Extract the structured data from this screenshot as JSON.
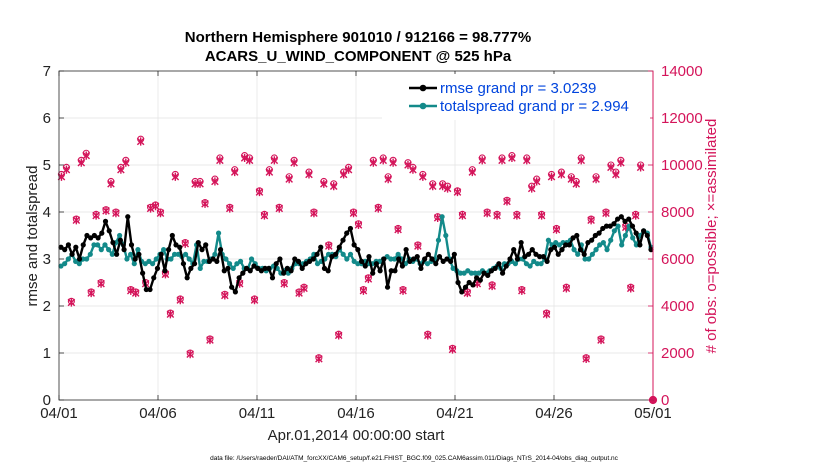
{
  "chart_data": {
    "type": "line",
    "title_line1": "Northern Hemisphere 901010 / 912166 = 98.777%",
    "title_line2": "ACARS_U_WIND_COMPONENT @ 525 hPa",
    "xlabel": "Apr.01,2014 00:00:00 start",
    "ylabel": "rmse and totalspread",
    "ylabel_right": "# of obs: o=possible; ×=assimilated",
    "footnote": "data file: /Users/raeder/DAI/ATM_forcXX/CAM6_setup/f.e21.FHIST_BGC.f09_025.CAM6assim.011/Diags_NTrS_2014-04/obs_diag_output.nc",
    "xlim": [
      0,
      30
    ],
    "ylim": [
      0,
      7
    ],
    "ylim_right": [
      0,
      14000
    ],
    "x_ticks": [
      0,
      5,
      10,
      15,
      20,
      25,
      30
    ],
    "x_tick_labels": [
      "04/01",
      "04/06",
      "04/11",
      "04/16",
      "04/21",
      "04/26",
      "05/01"
    ],
    "y_ticks": [
      0,
      1,
      2,
      3,
      4,
      5,
      6,
      7
    ],
    "y_tick_labels": [
      "0",
      "1",
      "2",
      "3",
      "4",
      "5",
      "6",
      "7"
    ],
    "y_ticks_right": [
      0,
      2000,
      4000,
      6000,
      8000,
      10000,
      12000,
      14000
    ],
    "y_tick_labels_right": [
      "0",
      "2000",
      "4000",
      "6000",
      "8000",
      "10000",
      "12000",
      "14000"
    ],
    "legend_position": "top-right",
    "colors": {
      "rmse": "#000000",
      "spread": "#138a8a",
      "obs": "#d4145a",
      "legend_text": "#0044dd"
    },
    "series": [
      {
        "name": "rmse grand pr = 3.0239",
        "key": "rmse",
        "values": [
          3.25,
          3.2,
          3.3,
          3.1,
          3.25,
          3.0,
          3.3,
          3.5,
          3.45,
          3.5,
          3.45,
          3.55,
          3.8,
          3.6,
          3.35,
          3.1,
          3.4,
          3.2,
          3.9,
          3.3,
          3.0,
          3.1,
          2.7,
          2.35,
          2.35,
          2.6,
          2.8,
          3.1,
          2.75,
          3.2,
          3.5,
          3.3,
          3.25,
          2.9,
          2.6,
          2.8,
          2.9,
          3.35,
          3.2,
          3.3,
          2.95,
          3.0,
          2.95,
          3.2,
          2.75,
          2.8,
          2.4,
          2.3,
          2.6,
          2.7,
          2.8,
          2.75,
          2.85,
          2.8,
          2.75,
          2.8,
          2.8,
          2.6,
          2.9,
          3.0,
          2.7,
          2.8,
          2.75,
          3.0,
          2.95,
          2.8,
          2.9,
          2.95,
          3.0,
          3.1,
          3.25,
          2.8,
          2.75,
          3.05,
          3.1,
          3.25,
          3.4,
          3.55,
          3.65,
          3.3,
          3.2,
          2.95,
          2.85,
          3.05,
          2.7,
          2.9,
          2.75,
          3.0,
          2.4,
          2.75,
          2.75,
          3.0,
          2.85,
          3.2,
          2.95,
          3.0,
          3.05,
          2.8,
          3.0,
          3.1,
          3.0,
          2.9,
          3.05,
          2.95,
          3.0,
          2.95,
          3.1,
          2.5,
          2.3,
          2.4,
          2.5,
          2.45,
          2.6,
          2.55,
          2.7,
          2.65,
          2.75,
          2.8,
          2.9,
          2.7,
          2.85,
          3.0,
          3.2,
          3.0,
          3.35,
          3.05,
          3.1,
          3.2,
          3.1,
          3.05,
          3.05,
          2.95,
          3.2,
          3.25,
          3.1,
          3.2,
          3.3,
          3.3,
          3.45,
          3.5,
          3.2,
          3.1,
          3.35,
          3.4,
          3.5,
          3.55,
          3.65,
          3.7,
          3.7,
          3.75,
          3.85,
          3.9,
          3.8,
          3.85,
          3.7,
          3.55,
          3.3,
          3.6,
          3.5,
          3.2
        ]
      },
      {
        "name": "totalspread grand pr = 2.994",
        "key": "spread",
        "values": [
          2.85,
          2.9,
          3.0,
          3.1,
          2.95,
          2.9,
          3.0,
          3.0,
          3.1,
          3.3,
          3.3,
          3.2,
          3.3,
          3.2,
          3.1,
          3.35,
          3.5,
          3.3,
          3.0,
          3.1,
          2.9,
          3.2,
          2.95,
          2.9,
          2.95,
          2.9,
          3.0,
          3.1,
          3.2,
          3.0,
          3.0,
          3.1,
          3.1,
          3.05,
          3.1,
          3.0,
          2.9,
          3.3,
          2.8,
          2.95,
          2.95,
          3.0,
          3.1,
          3.55,
          3.1,
          3.0,
          2.9,
          2.8,
          2.9,
          2.95,
          2.8,
          2.8,
          3.0,
          2.9,
          2.8,
          2.8,
          2.75,
          2.8,
          2.85,
          2.8,
          2.7,
          2.75,
          2.7,
          2.8,
          2.9,
          2.9,
          2.9,
          2.95,
          3.0,
          3.1,
          2.9,
          2.95,
          3.0,
          3.1,
          3.1,
          3.05,
          3.2,
          3.1,
          3.0,
          3.1,
          2.95,
          2.9,
          2.9,
          2.95,
          2.9,
          2.9,
          2.95,
          2.95,
          3.0,
          3.05,
          3.0,
          3.0,
          3.1,
          3.0,
          2.9,
          3.0,
          2.95,
          3.0,
          2.9,
          2.95,
          2.9,
          2.95,
          3.0,
          3.4,
          3.9,
          3.5,
          3.0,
          2.8,
          2.75,
          2.7,
          2.7,
          2.75,
          2.7,
          2.7,
          2.7,
          2.75,
          2.7,
          2.75,
          2.8,
          2.85,
          2.8,
          2.9,
          2.9,
          2.95,
          2.9,
          3.0,
          3.0,
          2.9,
          2.85,
          2.95,
          2.9,
          2.9,
          3.0,
          3.4,
          3.3,
          3.35,
          3.3,
          3.35,
          3.35,
          3.4,
          3.2,
          3.1,
          3.3,
          3.0,
          3.0,
          3.1,
          3.2,
          3.3,
          3.35,
          3.2,
          3.4,
          3.6,
          3.7,
          3.3,
          3.5,
          3.7,
          3.45,
          3.3,
          3.5,
          3.6,
          3.55,
          3.25
        ]
      },
      {
        "name": "obs possible",
        "key": "obs_possible",
        "values": [
          9600,
          9900,
          4200,
          7700,
          10200,
          10500,
          4600,
          7900,
          5000,
          8100,
          9300,
          8000,
          9900,
          10200,
          4700,
          4600,
          11100,
          5000,
          8200,
          8300,
          8000,
          5400,
          3700,
          9600,
          4300,
          6700,
          2000,
          9300,
          9300,
          8400,
          2600,
          9400,
          10300,
          4500,
          8200,
          9800,
          5000,
          10400,
          10300,
          4300,
          8900,
          7900,
          9800,
          10300,
          8200,
          5000,
          9500,
          10200,
          4600,
          4800,
          9700,
          8000,
          1800,
          9300,
          6600,
          9200,
          2800,
          9700,
          9900,
          8000,
          7500,
          4700,
          5200,
          10200,
          8200,
          10300,
          9500,
          10200,
          7300,
          4700,
          10100,
          9900,
          6600,
          9600,
          2800,
          9200,
          7800,
          9200,
          9100,
          2200,
          8900,
          7900,
          4600,
          9800,
          5000,
          10300,
          8000,
          4900,
          7900,
          10300,
          8500,
          10400,
          7900,
          4700,
          10300,
          9100,
          9400,
          7900,
          3700,
          9600,
          7300,
          9700,
          4800,
          9500,
          9300,
          10300,
          1800,
          7700,
          9500,
          2600,
          8000,
          10000,
          9700,
          10200,
          7400,
          4800,
          7900,
          10000
        ]
      },
      {
        "name": "obs assimilated",
        "key": "obs_assimilated",
        "values": [
          9500,
          9800,
          4150,
          7650,
          10100,
          10400,
          4550,
          7850,
          4950,
          8050,
          9200,
          7950,
          9800,
          10100,
          4650,
          4550,
          11000,
          4950,
          8150,
          8250,
          7950,
          5350,
          3650,
          9500,
          4250,
          6650,
          1950,
          9200,
          9200,
          8350,
          2550,
          9300,
          10200,
          4450,
          8150,
          9700,
          4950,
          10300,
          10200,
          4250,
          8850,
          7850,
          9700,
          10200,
          8150,
          4950,
          9400,
          10100,
          4550,
          4750,
          9600,
          7950,
          1750,
          9200,
          6550,
          9100,
          2750,
          9600,
          9800,
          7950,
          7450,
          4650,
          5150,
          10100,
          8150,
          10200,
          9400,
          10100,
          7250,
          4650,
          10000,
          9800,
          6550,
          9500,
          2750,
          9100,
          7750,
          9100,
          9000,
          2150,
          8850,
          7850,
          4550,
          9700,
          4950,
          10200,
          7950,
          4850,
          7850,
          10200,
          8450,
          10300,
          7850,
          4650,
          10200,
          9000,
          9300,
          7850,
          3650,
          9500,
          7250,
          9600,
          4750,
          9400,
          9200,
          10200,
          1750,
          7650,
          9400,
          2550,
          7950,
          9900,
          9600,
          10100,
          7350,
          4750,
          7850,
          9900
        ]
      }
    ]
  }
}
